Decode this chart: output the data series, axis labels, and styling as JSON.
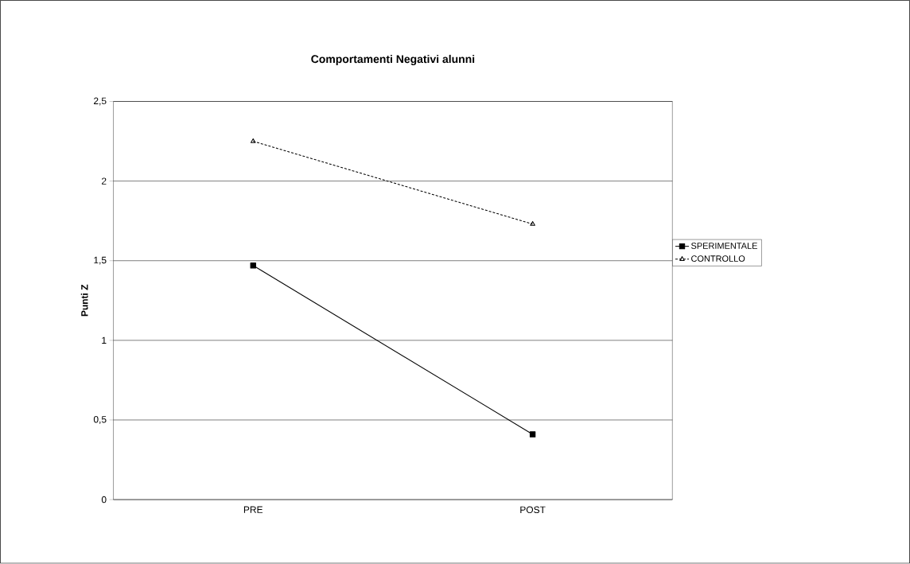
{
  "chart_data": {
    "type": "line",
    "title": "Comportamenti Negativi alunni",
    "ylabel": "Punti Z",
    "categories": [
      "PRE",
      "POST"
    ],
    "series": [
      {
        "name": "SPERIMENTALE",
        "color": "#000000",
        "values": [
          1.47,
          0.41
        ],
        "marker": "square",
        "line_style": "solid"
      },
      {
        "name": "CONTROLLO",
        "color": "#000000",
        "values": [
          2.25,
          1.73
        ],
        "marker": "triangle",
        "line_style": "dashed"
      }
    ],
    "ylim": [
      0,
      2.5
    ],
    "yticks": [
      0,
      {
        "value": 0.5,
        "label": "0,5"
      },
      1,
      {
        "value": 1.5,
        "label": "1,5"
      },
      2,
      {
        "value": 2.5,
        "label": "2,5"
      }
    ],
    "grid": "y",
    "legend": "right"
  }
}
